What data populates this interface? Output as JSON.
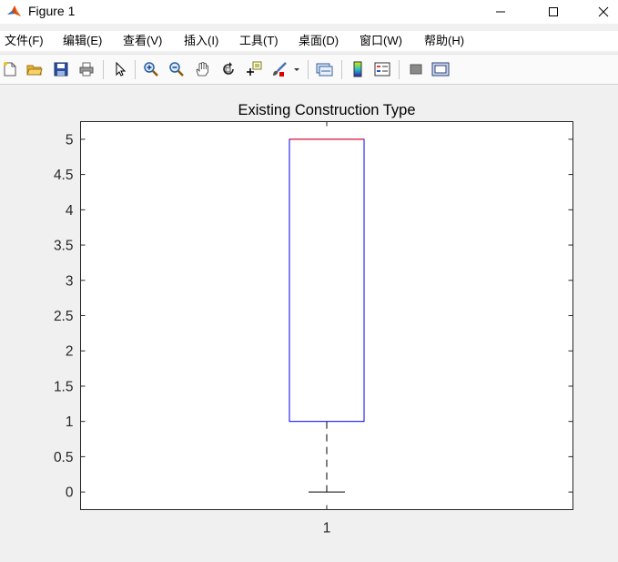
{
  "window": {
    "title": "Figure 1",
    "controls": [
      "minimize",
      "maximize",
      "close"
    ]
  },
  "menu": {
    "items": [
      "文件(F)",
      "编辑(E)",
      "查看(V)",
      "插入(I)",
      "工具(T)",
      "桌面(D)",
      "窗口(W)",
      "帮助(H)"
    ]
  },
  "toolbar": {
    "buttons": [
      "new-figure-icon",
      "open-file-icon",
      "save-icon",
      "print-icon",
      "edit-plot-arrow-icon",
      "zoom-in-icon",
      "zoom-out-icon",
      "pan-hand-icon",
      "rotate-3d-icon",
      "data-cursor-icon",
      "brush-icon",
      "link-plot-icon",
      "insert-colorbar-icon",
      "insert-legend-icon",
      "hide-plot-tools-icon",
      "show-plot-tools-icon"
    ]
  },
  "chart_data": {
    "type": "box",
    "title": "Existing Construction Type",
    "categories": [
      "1"
    ],
    "ylim": [
      -0.25,
      5.25
    ],
    "yticks": [
      0,
      0.5,
      1,
      1.5,
      2,
      2.5,
      3,
      3.5,
      4,
      4.5,
      5
    ],
    "ytick_labels": [
      "0",
      "0.5",
      "1",
      "1.5",
      "2",
      "2.5",
      "3",
      "3.5",
      "4",
      "4.5",
      "5"
    ],
    "boxes": [
      {
        "category": "1",
        "min": 0,
        "q1": 1,
        "median": 5,
        "q3": 5,
        "max": 5
      }
    ],
    "colors": {
      "box": "#0000ff",
      "median": "#ff0000",
      "whisker": "#000000"
    },
    "grid": false
  }
}
